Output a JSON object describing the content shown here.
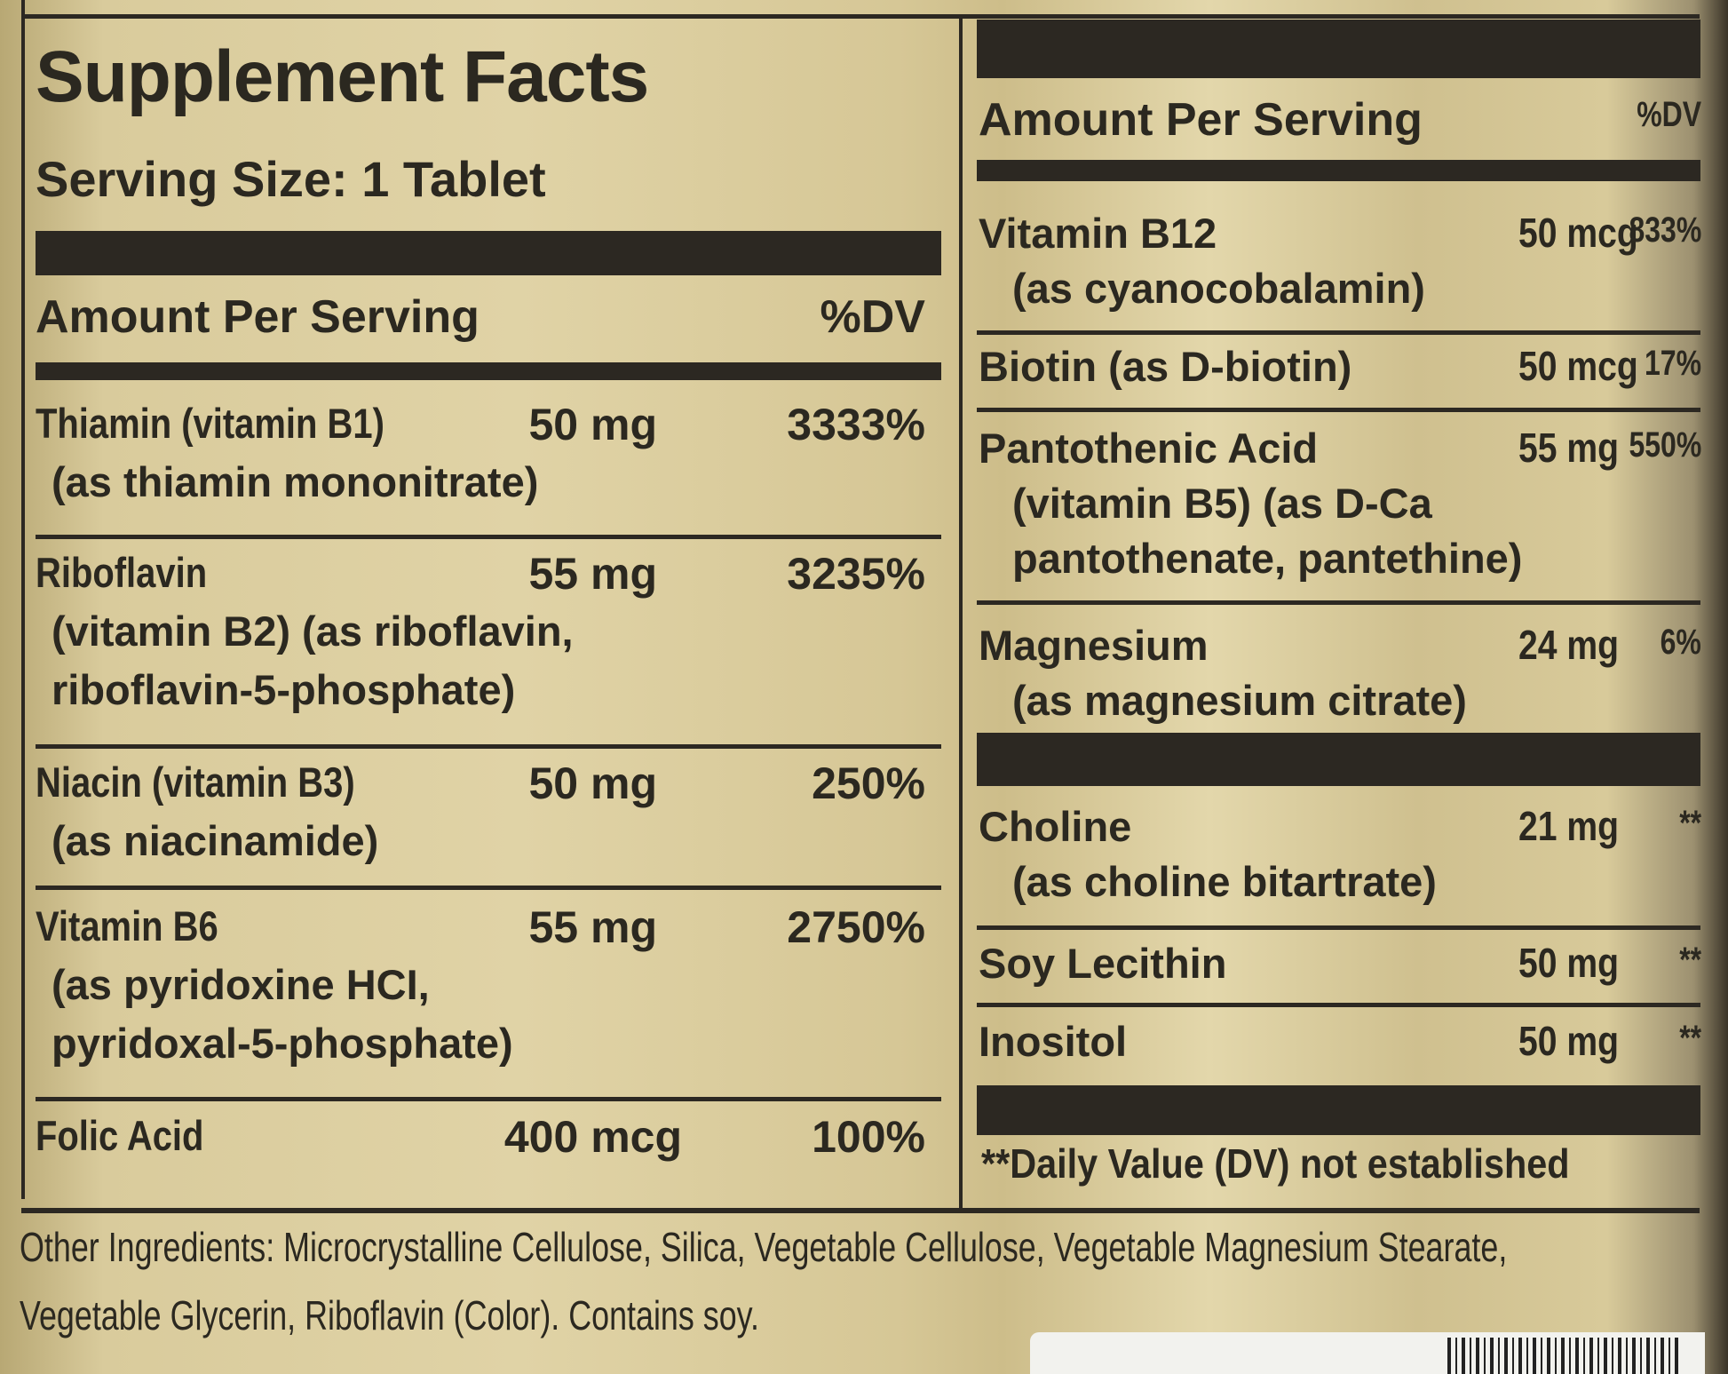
{
  "left": {
    "title": "Supplement Facts",
    "serving_size": "Serving Size: 1 Tablet",
    "amount_header": "Amount Per Serving",
    "dv_header": "%DV",
    "rows": [
      {
        "name": "Thiamin (vitamin B1)",
        "sub": [
          "(as thiamin mononitrate)"
        ],
        "amount": "50 mg",
        "dv": "3333%"
      },
      {
        "name": "Riboflavin",
        "sub": [
          "(vitamin B2) (as riboflavin,",
          "riboflavin-5-phosphate)"
        ],
        "amount": "55 mg",
        "dv": "3235%"
      },
      {
        "name": "Niacin (vitamin B3)",
        "sub": [
          "(as niacinamide)"
        ],
        "amount": "50 mg",
        "dv": "250%"
      },
      {
        "name": "Vitamin B6",
        "sub": [
          "(as pyridoxine HCI,",
          "pyridoxal-5-phosphate)"
        ],
        "amount": "55 mg",
        "dv": "2750%"
      },
      {
        "name": "Folic Acid",
        "sub": [],
        "amount": "400 mcg",
        "dv": "100%"
      }
    ]
  },
  "right": {
    "amount_header": "Amount Per Serving",
    "dv_header": "%DV",
    "rows": [
      {
        "name": "Vitamin B12",
        "sub": [
          "(as cyanocobalamin)"
        ],
        "amount": "50 mcg",
        "dv": "833%"
      },
      {
        "name": "Biotin (as D-biotin)",
        "sub": [],
        "amount": "50 mcg",
        "dv": "17%"
      },
      {
        "name": "Pantothenic Acid",
        "sub": [
          "(vitamin B5) (as D-Ca",
          "pantothenate, pantethine)"
        ],
        "amount": "55 mg",
        "dv": "550%"
      },
      {
        "name": "Magnesium",
        "sub": [
          "(as magnesium citrate)"
        ],
        "amount": "24 mg",
        "dv": "6%"
      },
      {
        "name": "Choline",
        "sub": [
          "(as choline bitartrate)"
        ],
        "amount": "21 mg",
        "dv": "**"
      },
      {
        "name": "Soy Lecithin",
        "sub": [],
        "amount": "50 mg",
        "dv": "**"
      },
      {
        "name": "Inositol",
        "sub": [],
        "amount": "50 mg",
        "dv": "**"
      }
    ],
    "footnote": "**Daily Value (DV) not established"
  },
  "other_ingredients": {
    "line1": "Other Ingredients: Microcrystalline Cellulose, Silica, Vegetable Cellulose, Vegetable Magnesium Stearate,",
    "line2": "Vegetable Glycerin, Riboflavin (Color). Contains soy."
  },
  "colors": {
    "label_gold": "#d9cb9c",
    "ink": "#2b2820"
  }
}
